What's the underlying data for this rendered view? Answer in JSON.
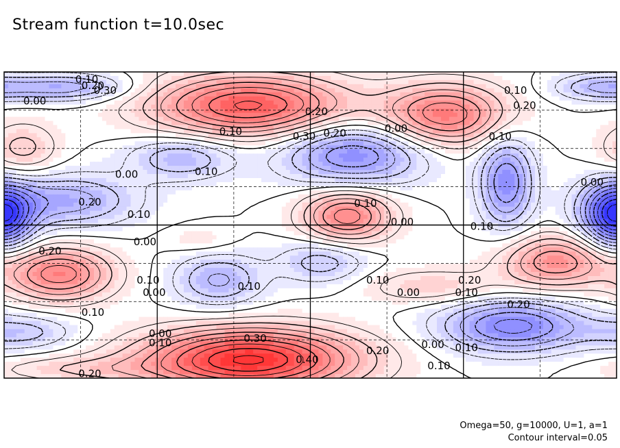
{
  "title": "Stream function t=10.0sec",
  "footer": {
    "params": "Omega=50, g=10000, U=1, a=1",
    "interval": "Contour interval=0.05"
  },
  "chart_data": {
    "type": "heatmap",
    "title": "Stream function t=10.0sec",
    "contour_interval": 0.05,
    "colors": {
      "positive": "#ff2020",
      "negative": "#2020ff",
      "zero": "#ffffff"
    },
    "grid": true,
    "blobs": [
      {
        "value": 0.36,
        "px": 0.4,
        "py": 0.11,
        "sx": 0.11,
        "sy": 0.07
      },
      {
        "value": 0.29,
        "px": 0.72,
        "py": 0.14,
        "sx": 0.07,
        "sy": 0.07
      },
      {
        "value": -0.25,
        "px": 0.57,
        "py": 0.27,
        "sx": 0.08,
        "sy": 0.07
      },
      {
        "value": -0.15,
        "px": 0.29,
        "py": 0.28,
        "sx": 0.06,
        "sy": 0.05
      },
      {
        "value": -0.25,
        "px": 0.82,
        "py": 0.36,
        "sx": 0.03,
        "sy": 0.1
      },
      {
        "value": -0.22,
        "px": 0.99,
        "py": 0.46,
        "sx": 0.04,
        "sy": 0.07
      },
      {
        "value": -0.22,
        "px": 0.0,
        "py": 0.48,
        "sx": 0.03,
        "sy": 0.07
      },
      {
        "value": -0.18,
        "px": 0.1,
        "py": 0.42,
        "sx": 0.08,
        "sy": 0.06
      },
      {
        "value": 0.28,
        "px": 0.56,
        "py": 0.47,
        "sx": 0.05,
        "sy": 0.06
      },
      {
        "value": -0.13,
        "px": 0.52,
        "py": 0.62,
        "sx": 0.05,
        "sy": 0.05
      },
      {
        "value": -0.16,
        "px": 0.35,
        "py": 0.68,
        "sx": 0.05,
        "sy": 0.06
      },
      {
        "value": 0.28,
        "px": 0.09,
        "py": 0.66,
        "sx": 0.06,
        "sy": 0.06
      },
      {
        "value": 0.24,
        "px": 0.9,
        "py": 0.62,
        "sx": 0.06,
        "sy": 0.06
      },
      {
        "value": -0.27,
        "px": 0.83,
        "py": 0.83,
        "sx": 0.08,
        "sy": 0.06
      },
      {
        "value": 0.46,
        "px": 0.4,
        "py": 0.94,
        "sx": 0.12,
        "sy": 0.07
      },
      {
        "value": -0.12,
        "px": 0.03,
        "py": 0.85,
        "sx": 0.06,
        "sy": 0.04
      },
      {
        "value": -0.18,
        "px": 0.1,
        "py": 0.05,
        "sx": 0.07,
        "sy": 0.03
      },
      {
        "value": -0.14,
        "px": 0.97,
        "py": 0.05,
        "sx": 0.05,
        "sy": 0.03
      },
      {
        "value": 0.1,
        "px": 0.7,
        "py": 0.7,
        "sx": 0.08,
        "sy": 0.04
      },
      {
        "value": 0.12,
        "px": 0.03,
        "py": 0.25,
        "sx": 0.04,
        "sy": 0.06
      },
      {
        "value": 0.05,
        "px": 0.32,
        "py": 0.55,
        "sx": 0.04,
        "sy": 0.03
      },
      {
        "value": 0.09,
        "px": 0.12,
        "py": 0.97,
        "sx": 0.1,
        "sy": 0.03
      }
    ],
    "labels": [
      {
        "text": "0.10",
        "px": 0.135,
        "py": 0.025
      },
      {
        "text": "0.20",
        "px": 0.145,
        "py": 0.045
      },
      {
        "text": "0.30",
        "px": 0.165,
        "py": 0.06
      },
      {
        "text": "0.00",
        "px": 0.05,
        "py": 0.095
      },
      {
        "text": "0.10",
        "px": 0.835,
        "py": 0.06
      },
      {
        "text": "0.20",
        "px": 0.85,
        "py": 0.11
      },
      {
        "text": "0.20",
        "px": 0.51,
        "py": 0.13
      },
      {
        "text": "0.10",
        "px": 0.37,
        "py": 0.195
      },
      {
        "text": "0.30",
        "px": 0.49,
        "py": 0.21
      },
      {
        "text": "0.20",
        "px": 0.54,
        "py": 0.2
      },
      {
        "text": "0.00",
        "px": 0.64,
        "py": 0.185
      },
      {
        "text": "0.10",
        "px": 0.81,
        "py": 0.21
      },
      {
        "text": "0.00",
        "px": 0.2,
        "py": 0.335
      },
      {
        "text": "0.10",
        "px": 0.33,
        "py": 0.325
      },
      {
        "text": "0.00",
        "px": 0.96,
        "py": 0.36
      },
      {
        "text": "0.20",
        "px": 0.14,
        "py": 0.425
      },
      {
        "text": "0.10",
        "px": 0.22,
        "py": 0.465
      },
      {
        "text": "0.10",
        "px": 0.59,
        "py": 0.43
      },
      {
        "text": "0.00",
        "px": 0.65,
        "py": 0.49
      },
      {
        "text": "0.10",
        "px": 0.78,
        "py": 0.505
      },
      {
        "text": "0.00",
        "px": 0.23,
        "py": 0.555
      },
      {
        "text": "0.20",
        "px": 0.075,
        "py": 0.585
      },
      {
        "text": "0.10",
        "px": 0.235,
        "py": 0.68
      },
      {
        "text": "0.00",
        "px": 0.245,
        "py": 0.72
      },
      {
        "text": "0.10",
        "px": 0.4,
        "py": 0.7
      },
      {
        "text": "0.10",
        "px": 0.61,
        "py": 0.68
      },
      {
        "text": "0.00",
        "px": 0.66,
        "py": 0.72
      },
      {
        "text": "0.20",
        "px": 0.76,
        "py": 0.68
      },
      {
        "text": "0.10",
        "px": 0.755,
        "py": 0.72
      },
      {
        "text": "0.20",
        "px": 0.84,
        "py": 0.76
      },
      {
        "text": "0.10",
        "px": 0.145,
        "py": 0.785
      },
      {
        "text": "0.00",
        "px": 0.255,
        "py": 0.855
      },
      {
        "text": "0.10",
        "px": 0.255,
        "py": 0.885
      },
      {
        "text": "0.30",
        "px": 0.41,
        "py": 0.87
      },
      {
        "text": "0.20",
        "px": 0.61,
        "py": 0.91
      },
      {
        "text": "0.00",
        "px": 0.7,
        "py": 0.89
      },
      {
        "text": "0.10",
        "px": 0.755,
        "py": 0.9
      },
      {
        "text": "0.10",
        "px": 0.71,
        "py": 0.96
      },
      {
        "text": "0.40",
        "px": 0.495,
        "py": 0.94
      },
      {
        "text": "0.20",
        "px": 0.14,
        "py": 0.985
      }
    ]
  }
}
